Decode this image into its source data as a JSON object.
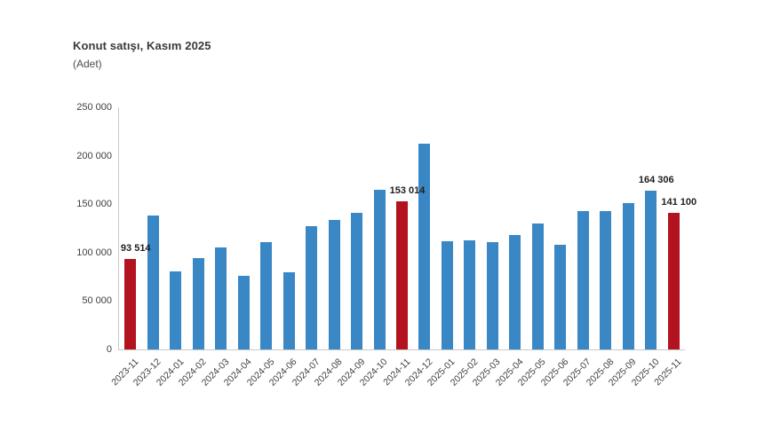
{
  "header": {
    "title": "Konut satışı, Kasım 2025",
    "subtitle": "(Adet)"
  },
  "chart_data": {
    "type": "bar",
    "title": "Konut satışı, Kasım 2025",
    "ylabel": "(Adet)",
    "xlabel": "",
    "categories": [
      "2023-11",
      "2023-12",
      "2024-01",
      "2024-02",
      "2024-03",
      "2024-04",
      "2024-05",
      "2024-06",
      "2024-07",
      "2024-08",
      "2024-09",
      "2024-10",
      "2024-11",
      "2024-12",
      "2025-01",
      "2025-02",
      "2025-03",
      "2025-04",
      "2025-05",
      "2025-06",
      "2025-07",
      "2025-08",
      "2025-09",
      "2025-10",
      "2025-11"
    ],
    "values": [
      93514,
      138577,
      80308,
      93902,
      105476,
      75569,
      110588,
      79313,
      127088,
      134155,
      140919,
      165138,
      153014,
      212637,
      112173,
      112818,
      110795,
      118359,
      130025,
      107723,
      142858,
      143319,
      150738,
      164306,
      141100
    ],
    "highlight_indices": [
      0,
      12,
      24
    ],
    "point_labels": [
      {
        "index": 0,
        "text": "93 514"
      },
      {
        "index": 12,
        "text": "153 014"
      },
      {
        "index": 23,
        "text": "164 306"
      },
      {
        "index": 24,
        "text": "141 100"
      }
    ],
    "ylim": [
      0,
      250000
    ],
    "ytick_values": [
      0,
      50000,
      100000,
      150000,
      200000,
      250000
    ],
    "ytick_labels": [
      "0",
      "50 000",
      "100 000",
      "150 000",
      "200 000",
      "250 000"
    ],
    "bar_color": "#3a87c5",
    "highlight_color": "#b2131f",
    "axis_color": "#c9c9c9",
    "grid": false,
    "legend": false
  }
}
